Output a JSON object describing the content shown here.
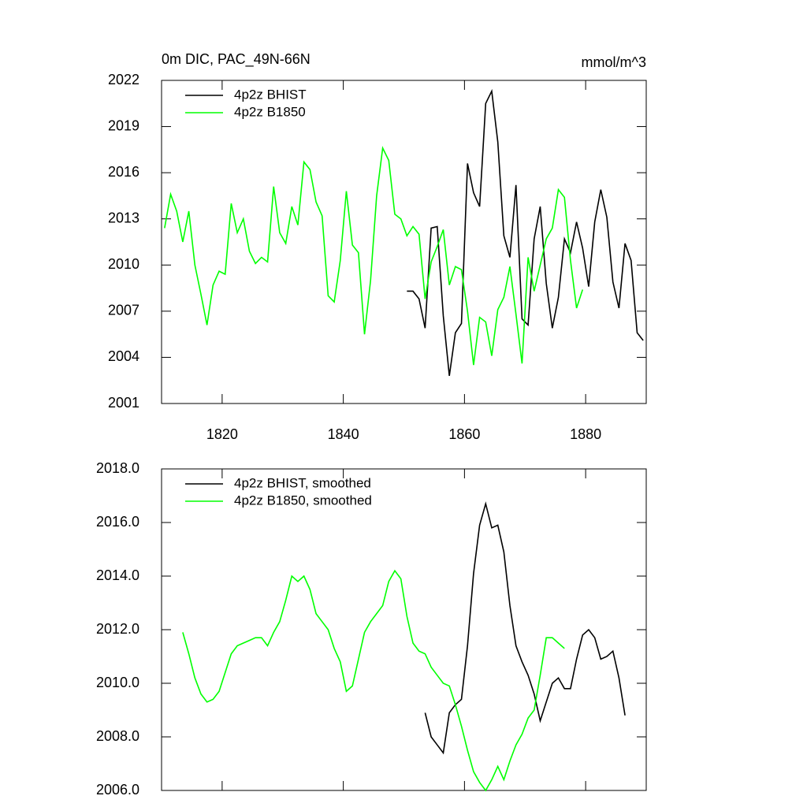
{
  "chart_data": [
    {
      "type": "line",
      "title": "0m DIC, PAC_49N-66N",
      "right_title": "mmol/m^3",
      "xlim": [
        1810,
        1890
      ],
      "xticks": [
        1820,
        1840,
        1860,
        1880
      ],
      "ylim": [
        2001,
        2022
      ],
      "yticks": [
        2001,
        2004,
        2007,
        2010,
        2013,
        2016,
        2019,
        2022
      ],
      "legend": "upper left",
      "series": [
        {
          "name": "4p2z BHIST",
          "color": "#000000",
          "x": [
            1850.5,
            1851.5,
            1852.5,
            1853.5,
            1854.5,
            1855.5,
            1856.5,
            1857.5,
            1858.5,
            1859.5,
            1860.5,
            1861.5,
            1862.5,
            1863.5,
            1864.5,
            1865.5,
            1866.5,
            1867.5,
            1868.5,
            1869.5,
            1870.5,
            1871.5,
            1872.5,
            1873.5,
            1874.5,
            1875.5,
            1876.5,
            1877.5,
            1878.5,
            1879.5,
            1880.5,
            1881.5,
            1882.5,
            1883.5,
            1884.5,
            1885.5,
            1886.5,
            1887.5,
            1888.5,
            1889.5
          ],
          "values": [
            2008.3,
            2008.3,
            2007.8,
            2005.9,
            2012.4,
            2012.5,
            2006.7,
            2002.8,
            2005.6,
            2006.2,
            2016.6,
            2014.7,
            2013.8,
            2020.5,
            2021.3,
            2018.0,
            2011.9,
            2010.5,
            2015.2,
            2006.5,
            2006.1,
            2011.7,
            2013.8,
            2008.8,
            2005.9,
            2007.9,
            2011.7,
            2010.8,
            2012.8,
            2011.1,
            2008.6,
            2012.8,
            2014.9,
            2013.1,
            2008.9,
            2007.2,
            2011.4,
            2010.3,
            2005.6,
            2005.1
          ]
        },
        {
          "name": "4p2z B1850",
          "color": "#00ff00",
          "x": [
            1810.5,
            1811.5,
            1812.5,
            1813.5,
            1814.5,
            1815.5,
            1816.5,
            1817.5,
            1818.5,
            1819.5,
            1820.5,
            1821.5,
            1822.5,
            1823.5,
            1824.5,
            1825.5,
            1826.5,
            1827.5,
            1828.5,
            1829.5,
            1830.5,
            1831.5,
            1832.5,
            1833.5,
            1834.5,
            1835.5,
            1836.5,
            1837.5,
            1838.5,
            1839.5,
            1840.5,
            1841.5,
            1842.5,
            1843.5,
            1844.5,
            1845.5,
            1846.5,
            1847.5,
            1848.5,
            1849.5,
            1850.5,
            1851.5,
            1852.5,
            1853.5,
            1854.5,
            1855.5,
            1856.5,
            1857.5,
            1858.5,
            1859.5,
            1860.5,
            1861.5,
            1862.5,
            1863.5,
            1864.5,
            1865.5,
            1866.5,
            1867.5,
            1868.5,
            1869.5,
            1870.5,
            1871.5,
            1872.5,
            1873.5,
            1874.5,
            1875.5,
            1876.5,
            1877.5,
            1878.5,
            1879.5
          ],
          "values": [
            2012.4,
            2014.6,
            2013.5,
            2011.5,
            2013.5,
            2010.0,
            2008.1,
            2006.1,
            2008.7,
            2009.6,
            2009.4,
            2014.0,
            2012.1,
            2013.0,
            2010.9,
            2010.1,
            2010.5,
            2010.2,
            2015.1,
            2012.1,
            2011.4,
            2013.8,
            2012.6,
            2016.7,
            2016.2,
            2014.1,
            2013.2,
            2008.0,
            2007.6,
            2010.3,
            2014.8,
            2011.3,
            2010.8,
            2005.5,
            2009.0,
            2014.5,
            2017.6,
            2016.8,
            2013.3,
            2013.0,
            2011.9,
            2012.5,
            2012.0,
            2007.8,
            2010.2,
            2011.2,
            2012.3,
            2008.7,
            2009.9,
            2009.7,
            2007.0,
            2003.5,
            2006.6,
            2006.3,
            2004.1,
            2007.1,
            2007.9,
            2009.9,
            2006.8,
            2003.6,
            2010.5,
            2008.3,
            2010.0,
            2011.7,
            2012.4,
            2014.9,
            2014.4,
            2010.3,
            2007.2,
            2008.4
          ]
        }
      ]
    },
    {
      "type": "line",
      "xlim": [
        1810,
        1890
      ],
      "xticks": [
        1820,
        1840,
        1860,
        1880
      ],
      "ylim": [
        2006,
        2018
      ],
      "yticks": [
        {
          "value": 2006,
          "label": "2006.0"
        },
        {
          "value": 2008,
          "label": "2008.0"
        },
        {
          "value": 2010,
          "label": "2010.0"
        },
        {
          "value": 2012,
          "label": "2012.0"
        },
        {
          "value": 2014,
          "label": "2014.0"
        },
        {
          "value": 2016,
          "label": "2016.0"
        },
        {
          "value": 2018,
          "label": "2018.0"
        }
      ],
      "legend": "upper left",
      "series": [
        {
          "name": "4p2z BHIST, smoothed",
          "color": "#000000",
          "x": [
            1853.5,
            1854.5,
            1855.5,
            1856.5,
            1857.5,
            1858.5,
            1859.5,
            1860.5,
            1861.5,
            1862.5,
            1863.5,
            1864.5,
            1865.5,
            1866.5,
            1867.5,
            1868.5,
            1869.5,
            1870.5,
            1871.5,
            1872.5,
            1873.5,
            1874.5,
            1875.5,
            1876.5,
            1877.5,
            1878.5,
            1879.5,
            1880.5,
            1881.5,
            1882.5,
            1883.5,
            1884.5,
            1885.5,
            1886.5
          ],
          "values": [
            2008.9,
            2008.0,
            2007.7,
            2007.4,
            2008.9,
            2009.2,
            2009.4,
            2011.4,
            2014.1,
            2015.9,
            2016.7,
            2015.8,
            2015.9,
            2014.9,
            2012.9,
            2011.4,
            2010.8,
            2010.3,
            2009.6,
            2008.6,
            2009.3,
            2010.0,
            2010.2,
            2009.8,
            2009.8,
            2010.9,
            2011.8,
            2012.0,
            2011.7,
            2010.9,
            2011.0,
            2011.2,
            2010.2,
            2008.8
          ]
        },
        {
          "name": "4p2z B1850, smoothed",
          "color": "#00ff00",
          "x": [
            1813.5,
            1814.5,
            1815.5,
            1816.5,
            1817.5,
            1818.5,
            1819.5,
            1820.5,
            1821.5,
            1822.5,
            1823.5,
            1824.5,
            1825.5,
            1826.5,
            1827.5,
            1828.5,
            1829.5,
            1830.5,
            1831.5,
            1832.5,
            1833.5,
            1834.5,
            1835.5,
            1836.5,
            1837.5,
            1838.5,
            1839.5,
            1840.5,
            1841.5,
            1842.5,
            1843.5,
            1844.5,
            1845.5,
            1846.5,
            1847.5,
            1848.5,
            1849.5,
            1850.5,
            1851.5,
            1852.5,
            1853.5,
            1854.5,
            1855.5,
            1856.5,
            1857.5,
            1858.5,
            1859.5,
            1860.5,
            1861.5,
            1862.5,
            1863.5,
            1864.5,
            1865.5,
            1866.5,
            1867.5,
            1868.5,
            1869.5,
            1870.5,
            1871.5,
            1872.5,
            1873.5,
            1874.5,
            1875.5,
            1876.5
          ],
          "values": [
            2011.9,
            2011.1,
            2010.2,
            2009.6,
            2009.3,
            2009.4,
            2009.7,
            2010.4,
            2011.1,
            2011.4,
            2011.5,
            2011.6,
            2011.7,
            2011.7,
            2011.4,
            2011.9,
            2012.3,
            2013.1,
            2014.0,
            2013.8,
            2014.0,
            2013.5,
            2012.6,
            2012.3,
            2012.0,
            2011.3,
            2010.8,
            2009.7,
            2009.9,
            2010.9,
            2011.9,
            2012.3,
            2012.6,
            2012.9,
            2013.8,
            2014.2,
            2013.9,
            2012.5,
            2011.5,
            2011.2,
            2011.1,
            2010.6,
            2010.3,
            2010.0,
            2009.9,
            2009.2,
            2008.4,
            2007.5,
            2006.7,
            2006.3,
            2006.0,
            2006.4,
            2006.9,
            2006.4,
            2007.1,
            2007.7,
            2008.1,
            2008.7,
            2009.0,
            2010.3,
            2011.7,
            2011.7,
            2011.5,
            2011.3
          ]
        }
      ]
    }
  ]
}
